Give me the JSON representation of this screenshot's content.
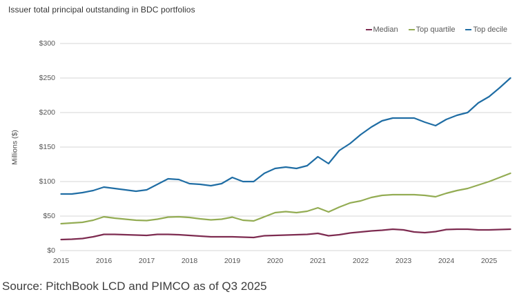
{
  "title": "Issuer total principal outstanding in BDC portfolios",
  "source": "Source: PitchBook LCD and PIMCO as of Q3 2025",
  "legend": {
    "items": [
      {
        "label": "Median",
        "color": "#7d2b50"
      },
      {
        "label": "Top quartile",
        "color": "#93ac53"
      },
      {
        "label": "Top decile",
        "color": "#1f6da4"
      }
    ]
  },
  "y_axis": {
    "title": "Millions ($)",
    "tick_labels": [
      "$0",
      "$50",
      "$100",
      "$150",
      "$200",
      "$250",
      "$300"
    ],
    "tick_values": [
      0,
      50,
      100,
      150,
      200,
      250,
      300
    ]
  },
  "x_axis": {
    "tick_labels": [
      "2015",
      "2016",
      "2017",
      "2018",
      "2019",
      "2020",
      "2021",
      "2022",
      "2023",
      "2024",
      "2025"
    ]
  },
  "chart_data": {
    "type": "line",
    "title": "Issuer total principal outstanding in BDC portfolios",
    "xlabel": "",
    "ylabel": "Millions ($)",
    "x_unit": "quarterly",
    "x_start": 2015,
    "x_step": 0.25,
    "xlim": [
      2015,
      2025.5
    ],
    "ylim": [
      0,
      300
    ],
    "grid": "horizontal",
    "legend_position": "top-right",
    "gridline_color": "#d6d6d6",
    "series": [
      {
        "name": "Median",
        "color": "#7d2b50",
        "values": [
          16,
          16.5,
          17.5,
          20,
          23.5,
          23.5,
          23,
          22.5,
          22,
          23.5,
          23.5,
          23,
          22,
          21,
          20,
          20,
          20,
          19.5,
          19,
          21.5,
          22,
          22.5,
          23,
          23.5,
          25,
          21.5,
          23,
          25.5,
          27,
          28.5,
          29.5,
          31,
          30,
          27,
          26,
          27.5,
          30.5,
          31,
          31,
          30,
          30,
          30.5,
          31
        ]
      },
      {
        "name": "Top quartile",
        "color": "#93ac53",
        "values": [
          39,
          40,
          41,
          44,
          49,
          47,
          45.5,
          44,
          43.5,
          45.5,
          48.5,
          49,
          48,
          46,
          44.5,
          45.5,
          48.5,
          44,
          43,
          49,
          55,
          56.5,
          55,
          57,
          62,
          56,
          63,
          69,
          72,
          77,
          80,
          81,
          81,
          81,
          80,
          78,
          83,
          87,
          90,
          95,
          100,
          106,
          112
        ]
      },
      {
        "name": "Top decile",
        "color": "#1f6da4",
        "values": [
          82,
          82,
          84,
          87,
          92,
          90,
          88,
          86,
          88,
          96,
          104,
          103,
          97,
          96,
          94,
          97,
          106,
          100,
          100,
          112,
          119,
          121,
          119,
          123,
          136,
          126,
          145,
          155,
          168,
          179,
          188,
          192,
          192,
          192,
          186,
          181,
          190,
          196,
          200,
          214,
          223,
          236,
          250
        ]
      }
    ]
  }
}
